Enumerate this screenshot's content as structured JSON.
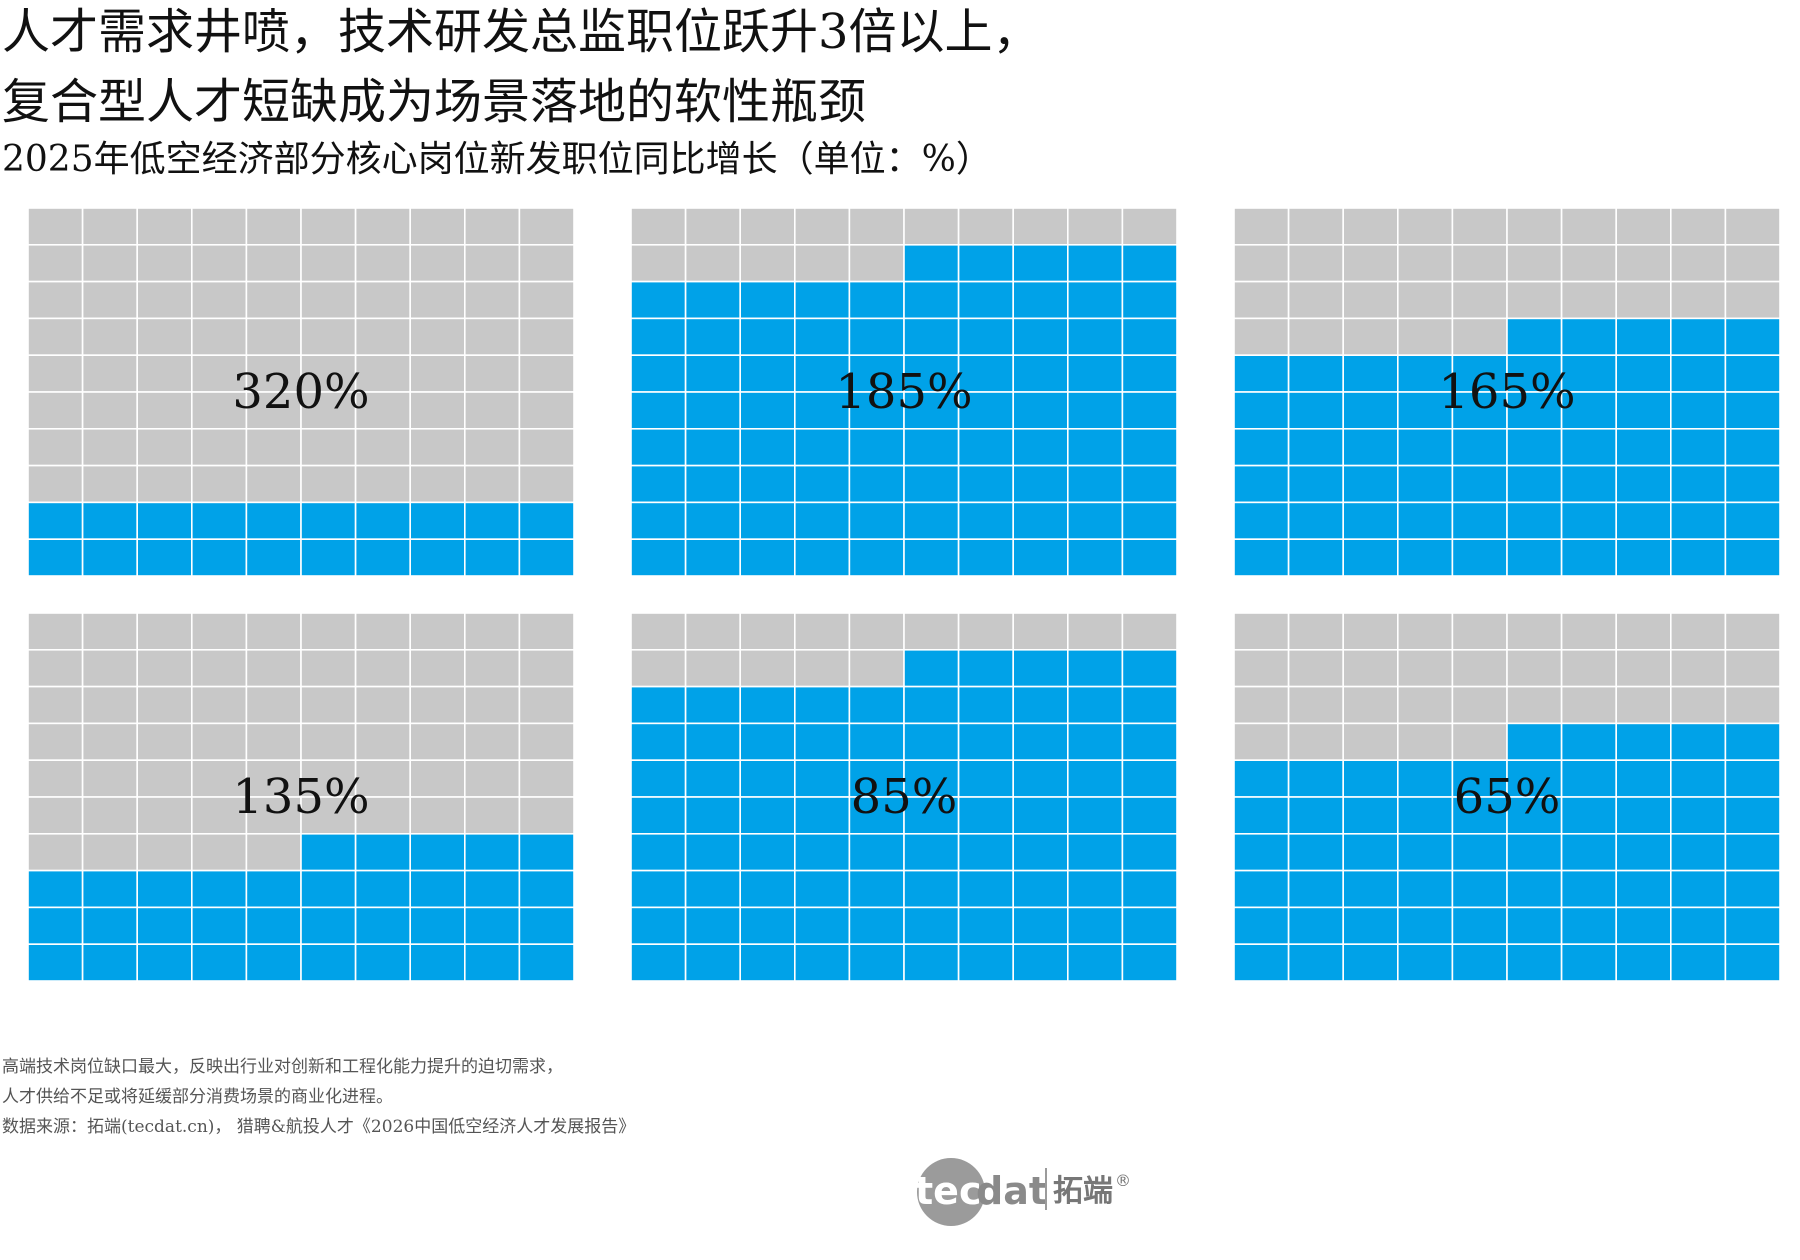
{
  "title_line1": "人才需求井喷，技术研发总监职位跃升3倍以上，",
  "title_line2": "复合型人才短缺成为场景落地的软性瓶颈",
  "subtitle": "2025年低空经济部分核心岗位新发职位同比增长（单位：%）",
  "notes": [
    "高端技术岗位缺口最大，反映出行业对创新和工程化能力提升的迫切需求，",
    "人才供给不足或将延缓部分消费场景的商业化进程。",
    "数据来源：拓端(tecdat.cn)， 猎聘&航投人才《2026中国低空经济人才发展报告》"
  ],
  "logo": {
    "left_text": "tec",
    "right_text": "dat",
    "brand_cn": "拓端",
    "mark": "®"
  },
  "colors": {
    "filled": "#00a2e8",
    "empty": "#c8c8c8",
    "grid": "#ffffff",
    "label": "#111111"
  },
  "chart_data": {
    "type": "waffle",
    "grid": {
      "rows": 10,
      "cols": 10
    },
    "panels": [
      {
        "value": 320,
        "label": "320%"
      },
      {
        "value": 185,
        "label": "185%"
      },
      {
        "value": 165,
        "label": "165%"
      },
      {
        "value": 135,
        "label": "135%"
      },
      {
        "value": 85,
        "label": "85%"
      },
      {
        "value": 65,
        "label": "65%"
      }
    ]
  }
}
